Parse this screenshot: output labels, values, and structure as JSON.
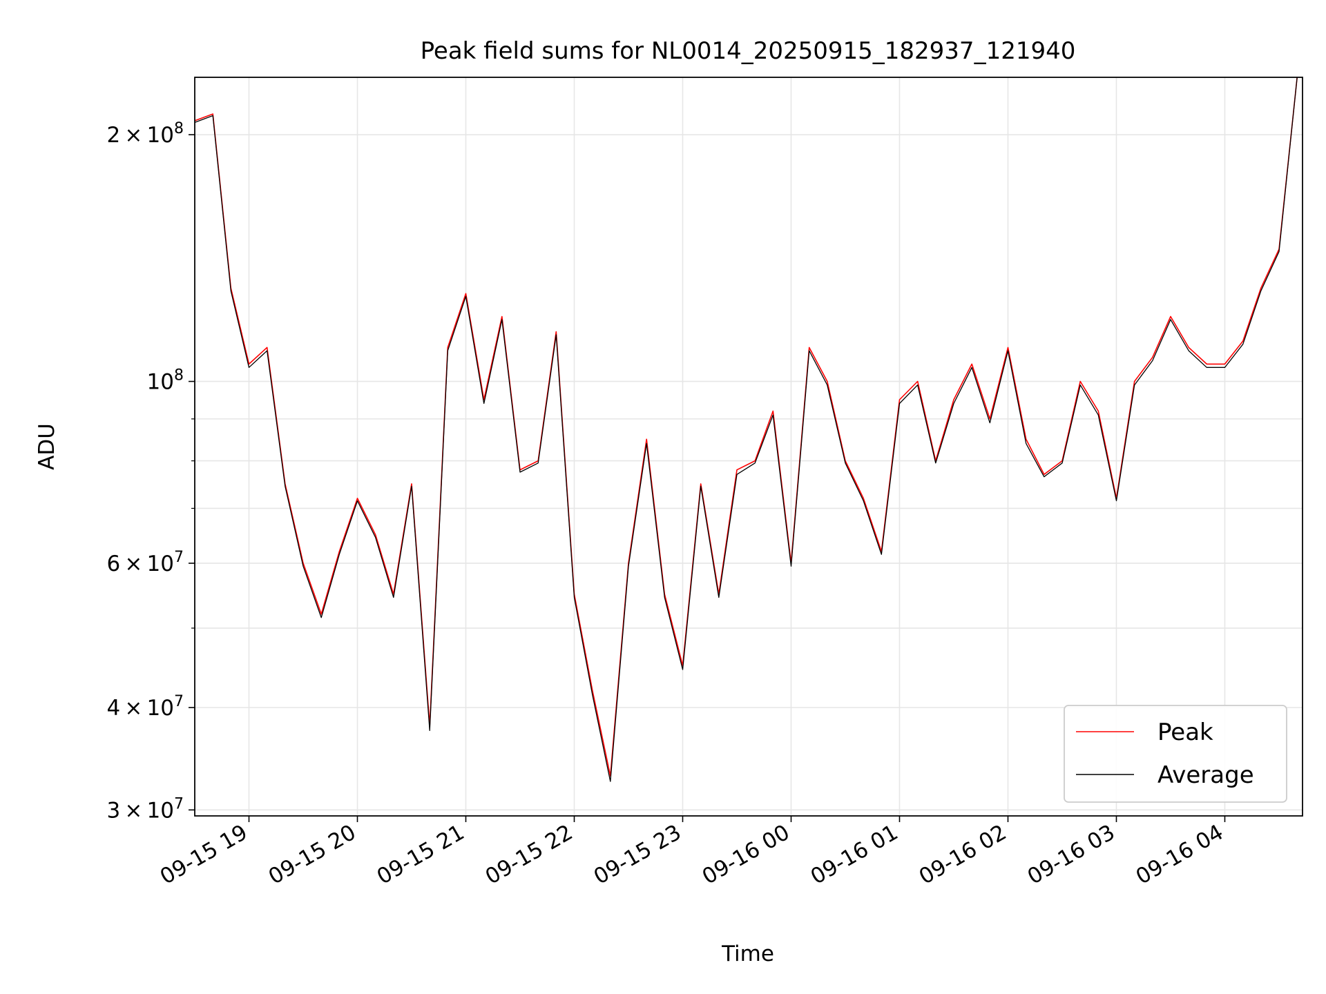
{
  "chart_data": {
    "type": "line",
    "title": "Peak field sums for NL0014_20250915_182937_121940",
    "xlabel": "Time",
    "ylabel": "ADU",
    "yscale": "log",
    "ylim": [
      29500000,
      235000000
    ],
    "xlim": [
      "2025-09-15 18:30",
      "2025-09-16 04:43"
    ],
    "grid": true,
    "legend_position": "lower-right",
    "x_ticks": [
      {
        "t": "2025-09-15 19:00",
        "label": "09-15 19"
      },
      {
        "t": "2025-09-15 20:00",
        "label": "09-15 20"
      },
      {
        "t": "2025-09-15 21:00",
        "label": "09-15 21"
      },
      {
        "t": "2025-09-15 22:00",
        "label": "09-15 22"
      },
      {
        "t": "2025-09-15 23:00",
        "label": "09-15 23"
      },
      {
        "t": "2025-09-16 00:00",
        "label": "09-16 00"
      },
      {
        "t": "2025-09-16 01:00",
        "label": "09-16 01"
      },
      {
        "t": "2025-09-16 02:00",
        "label": "09-16 02"
      },
      {
        "t": "2025-09-16 03:00",
        "label": "09-16 03"
      },
      {
        "t": "2025-09-16 04:00",
        "label": "09-16 04"
      }
    ],
    "y_major_ticks": [
      {
        "v": 30000000,
        "mant": "3",
        "exp": "7"
      },
      {
        "v": 40000000,
        "mant": "4",
        "exp": "7"
      },
      {
        "v": 60000000,
        "mant": "6",
        "exp": "7"
      },
      {
        "v": 100000000,
        "mant": "",
        "exp": "8"
      },
      {
        "v": 200000000,
        "mant": "2",
        "exp": "8"
      }
    ],
    "y_minor_grid": [
      50000000,
      70000000,
      80000000,
      90000000
    ],
    "times": [
      "18:30",
      "18:40",
      "18:50",
      "19:00",
      "19:10",
      "19:20",
      "19:30",
      "19:40",
      "19:50",
      "20:00",
      "20:10",
      "20:20",
      "20:30",
      "20:40",
      "20:50",
      "21:00",
      "21:10",
      "21:20",
      "21:30",
      "21:40",
      "21:50",
      "22:00",
      "22:10",
      "22:20",
      "22:30",
      "22:40",
      "22:50",
      "23:00",
      "23:10",
      "23:20",
      "23:30",
      "23:40",
      "23:50",
      "00:00",
      "00:10",
      "00:20",
      "00:30",
      "00:40",
      "00:50",
      "01:00",
      "01:10",
      "01:20",
      "01:30",
      "01:40",
      "01:50",
      "02:00",
      "02:10",
      "02:20",
      "02:30",
      "02:40",
      "02:50",
      "03:00",
      "03:10",
      "03:20",
      "03:30",
      "03:40",
      "03:50",
      "04:00",
      "04:10",
      "04:20",
      "04:30",
      "04:40"
    ],
    "series": [
      {
        "name": "Peak",
        "color": "#ff0000",
        "values": [
          208000000,
          212000000,
          130000000,
          105000000,
          110000000,
          75000000,
          60000000,
          52000000,
          62000000,
          72000000,
          65000000,
          55000000,
          75000000,
          38000000,
          110000000,
          128000000,
          95000000,
          120000000,
          78000000,
          80000000,
          115000000,
          55000000,
          42000000,
          33000000,
          60000000,
          85000000,
          55000000,
          45000000,
          75000000,
          55000000,
          78000000,
          80000000,
          92000000,
          60000000,
          110000000,
          100000000,
          80000000,
          72000000,
          62000000,
          95000000,
          100000000,
          80000000,
          95000000,
          105000000,
          90000000,
          110000000,
          85000000,
          77000000,
          80000000,
          100000000,
          92000000,
          72000000,
          100000000,
          107000000,
          120000000,
          110000000,
          105000000,
          105000000,
          112000000,
          130000000,
          145000000,
          240000000
        ]
      },
      {
        "name": "Average",
        "color": "#000000",
        "values": [
          207000000,
          211000000,
          129000000,
          104000000,
          109000000,
          74500000,
          59500000,
          51500000,
          61500000,
          71500000,
          64500000,
          54500000,
          74500000,
          37500000,
          109000000,
          127000000,
          94000000,
          119000000,
          77500000,
          79500000,
          114000000,
          54500000,
          41500000,
          32500000,
          59500000,
          84000000,
          54500000,
          44500000,
          74500000,
          54500000,
          77000000,
          79500000,
          91000000,
          59500000,
          109000000,
          99000000,
          79500000,
          71500000,
          61500000,
          94000000,
          99000000,
          79500000,
          94000000,
          104000000,
          89000000,
          109000000,
          84000000,
          76500000,
          79500000,
          99000000,
          91000000,
          71500000,
          99000000,
          106000000,
          119000000,
          109000000,
          104000000,
          104000000,
          111000000,
          129000000,
          144000000,
          238000000
        ]
      }
    ]
  }
}
